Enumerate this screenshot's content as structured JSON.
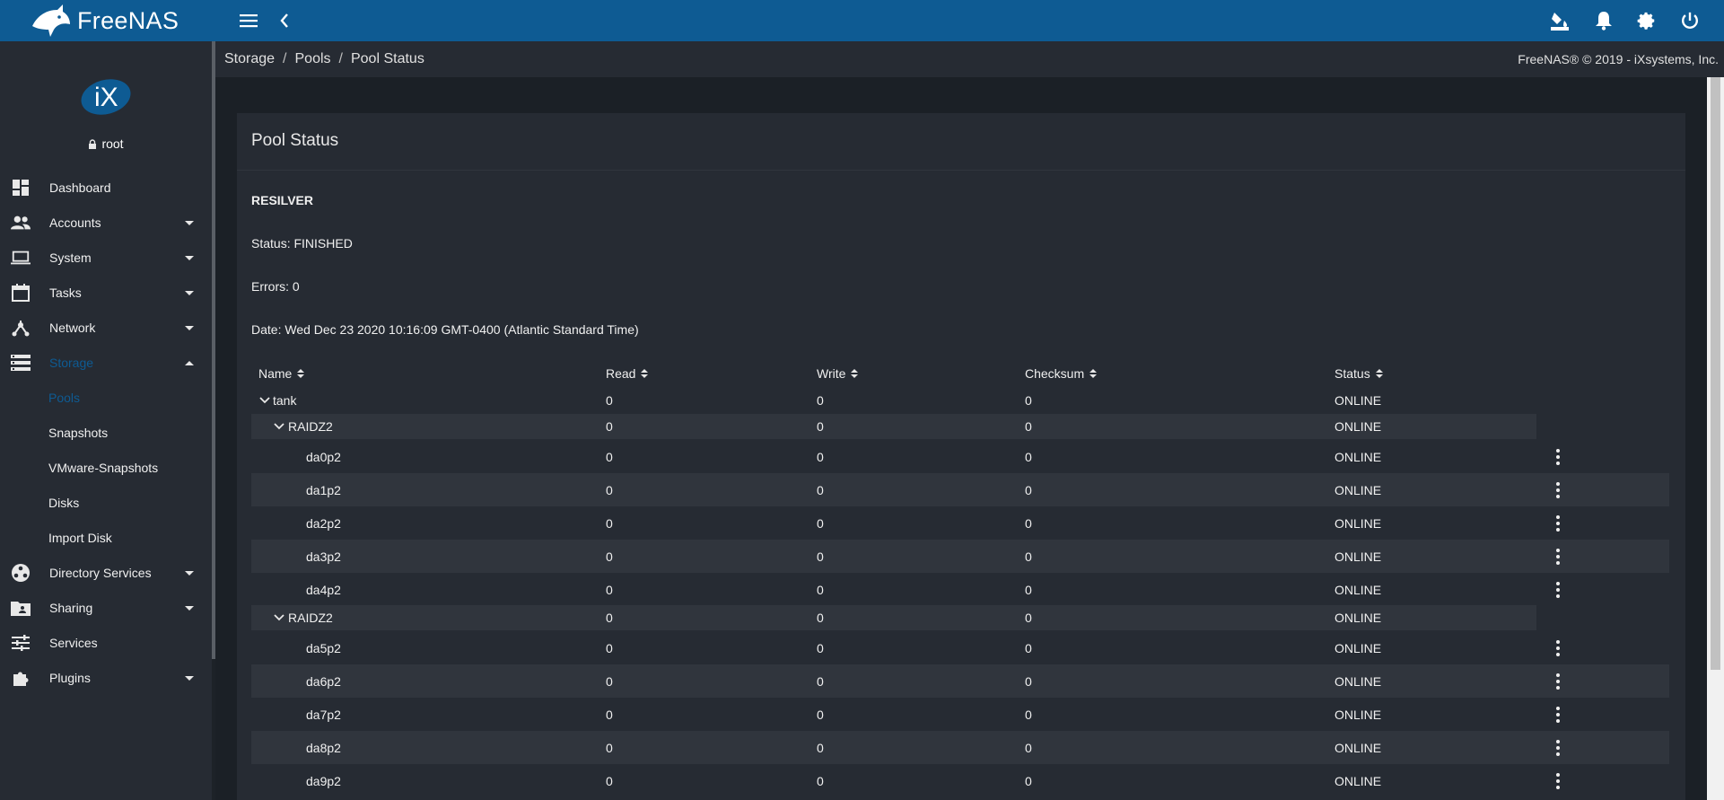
{
  "app": {
    "brand": "FreeNAS",
    "accent": "#0e5b93"
  },
  "topbar": {
    "menu_icon": "menu-icon",
    "back_icon": "chevron-left-icon",
    "right_icons": [
      "theme-paint-icon",
      "bell-icon",
      "gear-icon",
      "power-icon"
    ]
  },
  "user": {
    "name": "root",
    "avatar": "iX"
  },
  "sidebar": {
    "items": [
      {
        "label": "Dashboard",
        "icon": "dashboard-icon",
        "expandable": false
      },
      {
        "label": "Accounts",
        "icon": "accounts-icon",
        "expandable": true
      },
      {
        "label": "System",
        "icon": "laptop-icon",
        "expandable": true
      },
      {
        "label": "Tasks",
        "icon": "calendar-icon",
        "expandable": true
      },
      {
        "label": "Network",
        "icon": "network-icon",
        "expandable": true
      },
      {
        "label": "Storage",
        "icon": "storage-icon",
        "expandable": true,
        "expanded": true,
        "active": true
      },
      {
        "label": "Directory Services",
        "icon": "directory-icon",
        "expandable": true
      },
      {
        "label": "Sharing",
        "icon": "sharing-folder-icon",
        "expandable": true
      },
      {
        "label": "Services",
        "icon": "tune-icon",
        "expandable": false
      },
      {
        "label": "Plugins",
        "icon": "puzzle-icon",
        "expandable": true
      }
    ],
    "storage_sub": [
      "Pools",
      "Snapshots",
      "VMware-Snapshots",
      "Disks",
      "Import Disk"
    ]
  },
  "breadcrumb": [
    "Storage",
    "Pools",
    "Pool Status"
  ],
  "copyright": "FreeNAS® © 2019 - iXsystems, Inc.",
  "card": {
    "title": "Pool Status",
    "scan_type": "RESILVER",
    "status": "Status: FINISHED",
    "errors": "Errors: 0",
    "date": "Date: Wed Dec 23 2020 10:16:09 GMT-0400 (Atlantic Standard Time)"
  },
  "table": {
    "columns": [
      "Name",
      "Read",
      "Write",
      "Checksum",
      "Status"
    ],
    "rows": [
      {
        "name": "tank",
        "read": "0",
        "write": "0",
        "checksum": "0",
        "status": "ONLINE",
        "level": 0
      },
      {
        "name": "RAIDZ2",
        "read": "0",
        "write": "0",
        "checksum": "0",
        "status": "ONLINE",
        "level": 1
      },
      {
        "name": "da0p2",
        "read": "0",
        "write": "0",
        "checksum": "0",
        "status": "ONLINE",
        "level": 2
      },
      {
        "name": "da1p2",
        "read": "0",
        "write": "0",
        "checksum": "0",
        "status": "ONLINE",
        "level": 2
      },
      {
        "name": "da2p2",
        "read": "0",
        "write": "0",
        "checksum": "0",
        "status": "ONLINE",
        "level": 2
      },
      {
        "name": "da3p2",
        "read": "0",
        "write": "0",
        "checksum": "0",
        "status": "ONLINE",
        "level": 2
      },
      {
        "name": "da4p2",
        "read": "0",
        "write": "0",
        "checksum": "0",
        "status": "ONLINE",
        "level": 2
      },
      {
        "name": "RAIDZ2",
        "read": "0",
        "write": "0",
        "checksum": "0",
        "status": "ONLINE",
        "level": 1
      },
      {
        "name": "da5p2",
        "read": "0",
        "write": "0",
        "checksum": "0",
        "status": "ONLINE",
        "level": 2
      },
      {
        "name": "da6p2",
        "read": "0",
        "write": "0",
        "checksum": "0",
        "status": "ONLINE",
        "level": 2
      },
      {
        "name": "da7p2",
        "read": "0",
        "write": "0",
        "checksum": "0",
        "status": "ONLINE",
        "level": 2
      },
      {
        "name": "da8p2",
        "read": "0",
        "write": "0",
        "checksum": "0",
        "status": "ONLINE",
        "level": 2
      },
      {
        "name": "da9p2",
        "read": "0",
        "write": "0",
        "checksum": "0",
        "status": "ONLINE",
        "level": 2
      }
    ]
  }
}
